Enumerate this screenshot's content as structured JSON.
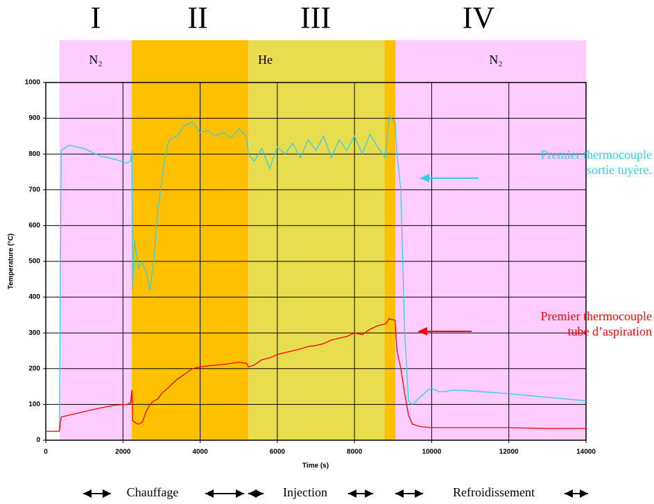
{
  "chart_data": {
    "type": "line",
    "x_label": "Time (s)",
    "y_label": "Temperature (°C)",
    "xlim": [
      0,
      14000
    ],
    "ylim": [
      0,
      1000
    ],
    "xticks": [
      0,
      2000,
      4000,
      6000,
      8000,
      10000,
      12000,
      14000
    ],
    "yticks": [
      0,
      100,
      200,
      300,
      400,
      500,
      600,
      700,
      800,
      900,
      1000
    ],
    "grid": true,
    "phases": [
      {
        "start": 360,
        "end": 2230,
        "color": "#ffccff"
      },
      {
        "start": 2230,
        "end": 5250,
        "color": "#ffc000"
      },
      {
        "start": 5250,
        "end": 8780,
        "color": "#e8dc4f"
      },
      {
        "start": 8780,
        "end": 9060,
        "color": "#ffc000"
      },
      {
        "start": 9060,
        "end": 14000,
        "color": "#ffccff"
      }
    ],
    "stage_numerals": [
      "I",
      "II",
      "III",
      "IV"
    ],
    "gas_labels": [
      "N₂",
      "He",
      "N₂"
    ],
    "stage_names": [
      "Chauffage",
      "Injection",
      "Refroidissement"
    ],
    "x": [
      0,
      350,
      400,
      600,
      1000,
      1400,
      1800,
      2100,
      2200,
      2230,
      2250,
      2300,
      2400,
      2500,
      2600,
      2700,
      2800,
      2900,
      3000,
      3050,
      3100,
      3200,
      3400,
      3600,
      3800,
      4000,
      4200,
      4400,
      4600,
      4800,
      5000,
      5200,
      5250,
      5400,
      5600,
      5800,
      6000,
      6200,
      6400,
      6600,
      6800,
      7000,
      7200,
      7400,
      7600,
      7800,
      8000,
      8200,
      8400,
      8600,
      8800,
      8900,
      9050,
      9100,
      9200,
      9300,
      9400,
      9500,
      9700,
      9900,
      10000,
      10200,
      10600,
      11000,
      12000,
      13000,
      14000
    ],
    "series": [
      {
        "name": "Premier thermocouple sortie tuyère.",
        "label_lines": [
          "Premier thermocouple",
          "sortie tuyère."
        ],
        "color": "#33ccee",
        "values": [
          25,
          25,
          810,
          825,
          815,
          795,
          785,
          775,
          780,
          810,
          420,
          560,
          480,
          500,
          470,
          420,
          500,
          640,
          720,
          760,
          800,
          840,
          850,
          880,
          890,
          860,
          865,
          850,
          860,
          845,
          870,
          850,
          800,
          780,
          815,
          760,
          820,
          800,
          830,
          790,
          840,
          810,
          850,
          790,
          840,
          810,
          850,
          800,
          855,
          820,
          790,
          905,
          890,
          800,
          700,
          300,
          110,
          100,
          120,
          140,
          145,
          135,
          140,
          138,
          130,
          120,
          110
        ]
      },
      {
        "name": "Premier thermocouple tube d’aspiration",
        "label_lines": [
          "Premier thermocouple",
          "tube d’aspiration"
        ],
        "color": "#ff0000",
        "values": [
          25,
          25,
          65,
          70,
          80,
          90,
          98,
          100,
          105,
          140,
          55,
          50,
          45,
          50,
          80,
          100,
          110,
          115,
          130,
          135,
          140,
          150,
          170,
          185,
          200,
          205,
          208,
          210,
          212,
          215,
          218,
          215,
          205,
          210,
          225,
          230,
          240,
          245,
          250,
          255,
          262,
          265,
          270,
          280,
          285,
          290,
          300,
          295,
          310,
          320,
          325,
          340,
          335,
          250,
          200,
          130,
          70,
          45,
          38,
          36,
          35,
          35,
          35,
          35,
          35,
          33,
          33
        ]
      }
    ]
  }
}
